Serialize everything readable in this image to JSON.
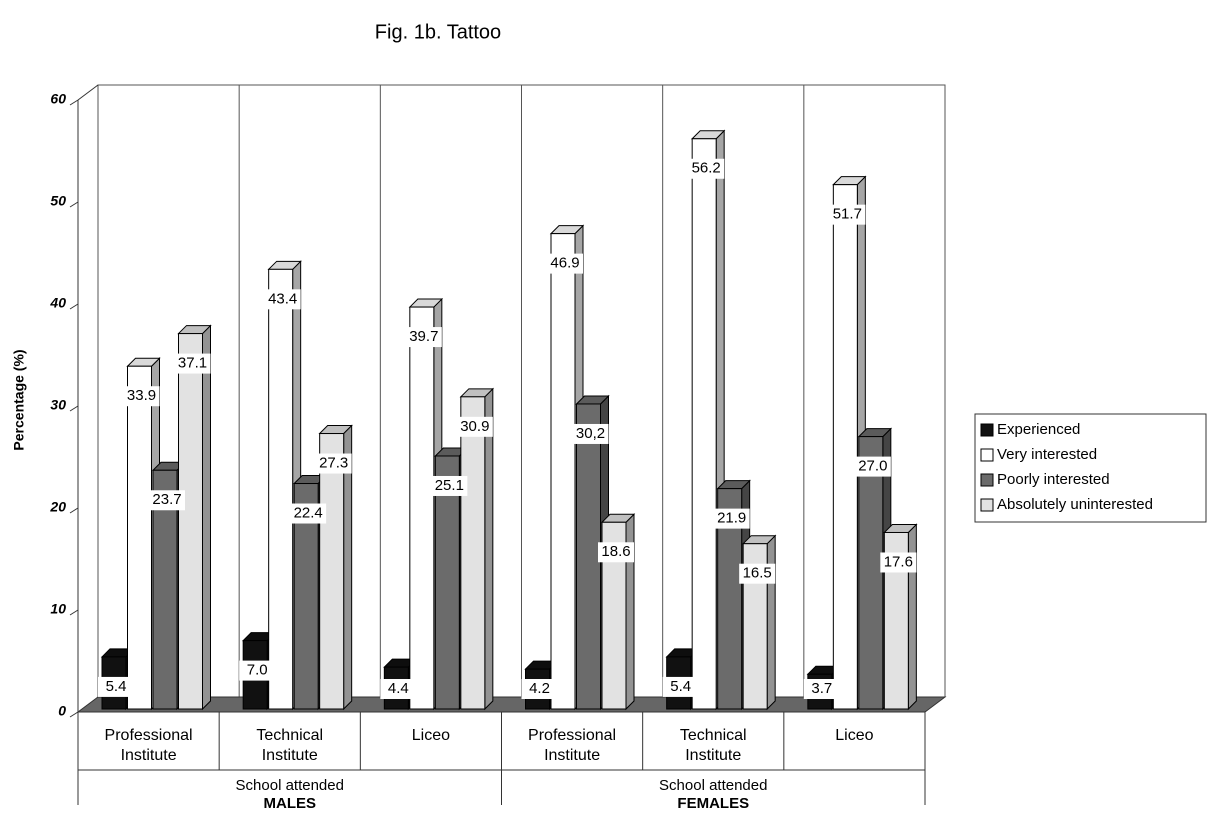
{
  "chart_data": {
    "type": "bar3d",
    "title": "Fig. 1b. Tattoo",
    "y_label": "Percentage (%)",
    "categories": [
      "Professional Institute",
      "Technical Institute",
      "Liceo",
      "Professional Institute",
      "Technical Institute",
      "Liceo"
    ],
    "groups": [
      {
        "label": "School attended",
        "name": "MALES"
      },
      {
        "label": "School attended",
        "name": "FEMALES"
      }
    ],
    "ylim": [
      0,
      60
    ],
    "yticks": [
      0,
      10,
      20,
      30,
      40,
      50,
      60
    ],
    "legend": "right",
    "series": [
      {
        "name": "Experienced",
        "color": "#111111",
        "values": [
          5.4,
          7.0,
          4.4,
          4.2,
          5.4,
          3.7
        ],
        "value_labels": [
          "5.4",
          "7.0",
          "4.4",
          "4.2",
          "5.4",
          "3.7"
        ]
      },
      {
        "name": "Very interested",
        "color": "#ffffff",
        "values": [
          33.9,
          43.4,
          39.7,
          46.9,
          56.2,
          51.7
        ],
        "value_labels": [
          "33.9",
          "43.4",
          "39.7",
          "46.9",
          "56.2",
          "51.7"
        ]
      },
      {
        "name": "Poorly interested",
        "color": "#6b6b6b",
        "values": [
          23.7,
          22.4,
          25.1,
          30.2,
          21.9,
          27.0
        ],
        "value_labels": [
          "23.7",
          "22.4",
          "25.1",
          "30,2",
          "21.9",
          "27.0"
        ]
      },
      {
        "name": "Absolutely uninterested",
        "color": "#e2e2e2",
        "values": [
          37.1,
          27.3,
          30.9,
          18.6,
          16.5,
          17.6
        ],
        "value_labels": [
          "37.1",
          "27.3",
          "30.9",
          "18.6",
          "16.5",
          "17.6"
        ]
      }
    ]
  }
}
